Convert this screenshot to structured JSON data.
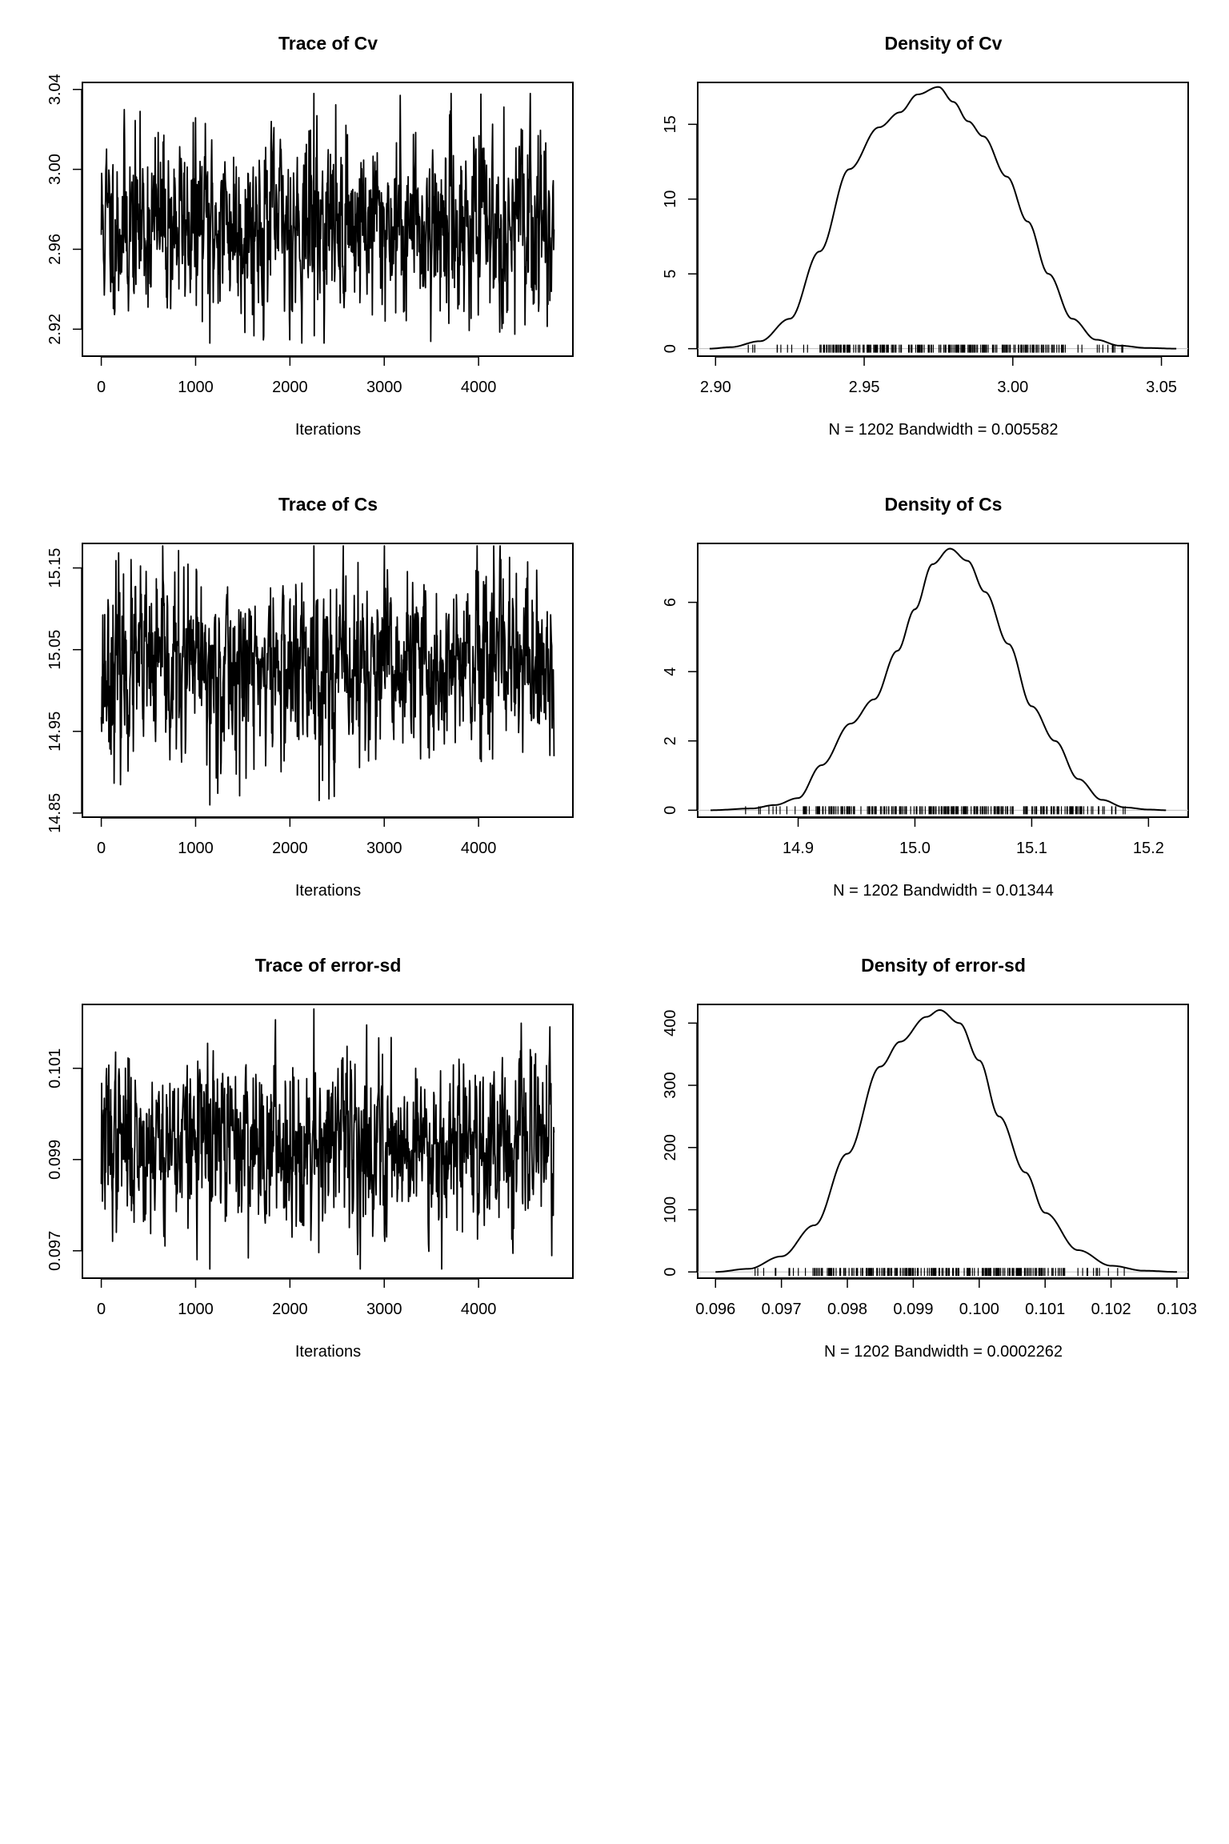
{
  "chart_data": [
    {
      "type": "line",
      "kind": "trace",
      "title": "Trace of Cv",
      "xlabel": "Iterations",
      "ylabel": "",
      "xlim": [
        -200,
        5000
      ],
      "ylim": [
        2.9065,
        3.0435
      ],
      "xticks": [
        0,
        1000,
        2000,
        3000,
        4000
      ],
      "xtick_labels": [
        "0",
        "1000",
        "2000",
        "3000",
        "4000"
      ],
      "yticks": [
        2.92,
        2.96,
        3.0,
        3.04
      ],
      "ytick_labels": [
        "2.92",
        "2.96",
        "3.00",
        "3.04"
      ],
      "series": {
        "name": "Cv",
        "n_points": 1202,
        "x_start": 0,
        "x_end": 4800,
        "center": 2.973,
        "sd": 0.021,
        "min": 2.913,
        "max": 3.038,
        "seed": 11
      }
    },
    {
      "type": "line",
      "kind": "density",
      "title": "Density of Cv",
      "xlabel": "N = 1202   Bandwidth = 0.005582",
      "ylabel": "",
      "xlim": [
        2.894,
        3.059
      ],
      "ylim": [
        -0.5,
        17.8
      ],
      "xticks": [
        2.9,
        2.95,
        3.0,
        3.05
      ],
      "xtick_labels": [
        "2.90",
        "2.95",
        "3.00",
        "3.05"
      ],
      "yticks": [
        0,
        5,
        10,
        15
      ],
      "ytick_labels": [
        "0",
        "5",
        "10",
        "15"
      ],
      "density": {
        "x": [
          2.898,
          2.905,
          2.915,
          2.925,
          2.935,
          2.945,
          2.955,
          2.962,
          2.968,
          2.975,
          2.98,
          2.985,
          2.99,
          2.998,
          3.005,
          3.012,
          3.02,
          3.028,
          3.036,
          3.045,
          3.055
        ],
        "y": [
          0.0,
          0.1,
          0.5,
          2.0,
          6.5,
          12.0,
          14.8,
          15.8,
          17.0,
          17.5,
          16.5,
          15.2,
          14.2,
          11.5,
          8.5,
          5.0,
          2.0,
          0.6,
          0.2,
          0.05,
          0.0
        ]
      },
      "rug": {
        "min": 2.911,
        "max": 3.037,
        "dense_from": 2.935,
        "dense_to": 3.018
      }
    },
    {
      "type": "line",
      "kind": "trace",
      "title": "Trace of Cs",
      "xlabel": "Iterations",
      "ylabel": "",
      "xlim": [
        -200,
        5000
      ],
      "ylim": [
        14.845,
        15.18
      ],
      "xticks": [
        0,
        1000,
        2000,
        3000,
        4000
      ],
      "xtick_labels": [
        "0",
        "1000",
        "2000",
        "3000",
        "4000"
      ],
      "yticks": [
        14.85,
        14.95,
        15.05,
        15.15
      ],
      "ytick_labels": [
        "14.85",
        "14.95",
        "15.05",
        "15.15"
      ],
      "series": {
        "name": "Cs",
        "n_points": 1202,
        "x_start": 0,
        "x_end": 4800,
        "center": 15.025,
        "sd": 0.052,
        "min": 14.86,
        "max": 15.177,
        "seed": 23
      }
    },
    {
      "type": "line",
      "kind": "density",
      "title": "Density of Cs",
      "xlabel": "N = 1202   Bandwidth = 0.01344",
      "ylabel": "",
      "xlim": [
        14.814,
        15.234
      ],
      "ylim": [
        -0.2,
        7.7
      ],
      "xticks": [
        14.9,
        15.0,
        15.1,
        15.2
      ],
      "xtick_labels": [
        "14.9",
        "15.0",
        "15.1",
        "15.2"
      ],
      "yticks": [
        0,
        2,
        4,
        6
      ],
      "ytick_labels": [
        "0",
        "2",
        "4",
        "6"
      ],
      "density": {
        "x": [
          14.825,
          14.86,
          14.88,
          14.9,
          14.92,
          14.945,
          14.965,
          14.985,
          15.0,
          15.015,
          15.03,
          15.045,
          15.06,
          15.08,
          15.1,
          15.12,
          15.14,
          15.16,
          15.18,
          15.2,
          15.215
        ],
        "y": [
          0.0,
          0.05,
          0.15,
          0.35,
          1.3,
          2.5,
          3.2,
          4.6,
          5.8,
          7.1,
          7.55,
          7.2,
          6.3,
          4.8,
          3.0,
          2.0,
          0.9,
          0.3,
          0.08,
          0.02,
          0.0
        ]
      },
      "rug": {
        "min": 14.855,
        "max": 15.18,
        "dense_from": 14.905,
        "dense_to": 15.155
      }
    },
    {
      "type": "line",
      "kind": "trace",
      "title": "Trace of error-sd",
      "xlabel": "Iterations",
      "ylabel": "",
      "xlim": [
        -200,
        5000
      ],
      "ylim": [
        0.0964,
        0.1024
      ],
      "xticks": [
        0,
        1000,
        2000,
        3000,
        4000
      ],
      "xtick_labels": [
        "0",
        "1000",
        "2000",
        "3000",
        "4000"
      ],
      "yticks": [
        0.097,
        0.099,
        0.101
      ],
      "ytick_labels": [
        "0.097",
        "0.099",
        "0.101"
      ],
      "series": {
        "name": "error-sd",
        "n_points": 1202,
        "x_start": 0,
        "x_end": 4800,
        "center": 0.0994,
        "sd": 0.00085,
        "min": 0.0966,
        "max": 0.1023,
        "seed": 37
      }
    },
    {
      "type": "line",
      "kind": "density",
      "title": "Density of error-sd",
      "xlabel": "N = 1202   Bandwidth = 0.0002262",
      "ylabel": "",
      "xlim": [
        0.09573,
        0.10317
      ],
      "ylim": [
        -10,
        430
      ],
      "xticks": [
        0.096,
        0.097,
        0.098,
        0.099,
        0.1,
        0.101,
        0.102,
        0.103
      ],
      "xtick_labels": [
        "0.096",
        "0.097",
        "0.098",
        "0.099",
        "0.100",
        "0.101",
        "0.102",
        "0.103"
      ],
      "yticks": [
        0,
        100,
        200,
        300,
        400
      ],
      "ytick_labels": [
        "0",
        "100",
        "200",
        "300",
        "400"
      ],
      "density": {
        "x": [
          0.096,
          0.0965,
          0.097,
          0.0975,
          0.098,
          0.0985,
          0.0988,
          0.0992,
          0.0994,
          0.0997,
          0.1,
          0.1003,
          0.1007,
          0.101,
          0.1015,
          0.102,
          0.1025,
          0.103
        ],
        "y": [
          0,
          5,
          25,
          75,
          190,
          330,
          370,
          410,
          421,
          400,
          340,
          250,
          160,
          95,
          35,
          10,
          2,
          0
        ]
      },
      "rug": {
        "min": 0.0966,
        "max": 0.1022,
        "dense_from": 0.0975,
        "dense_to": 0.1013
      }
    }
  ]
}
